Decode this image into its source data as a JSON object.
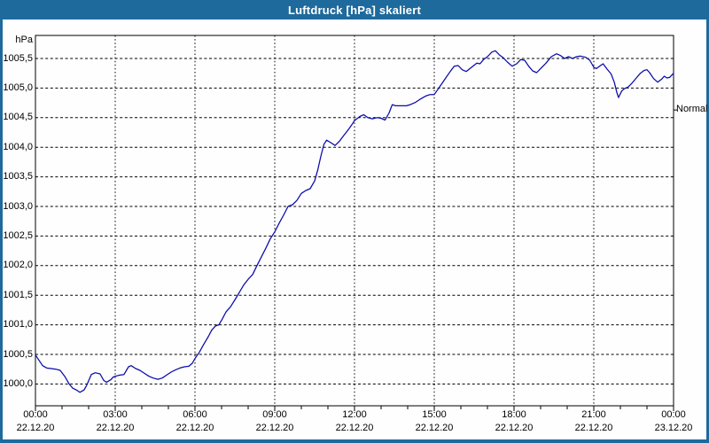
{
  "window": {
    "title": "Luftdruck [hPa] skaliert"
  },
  "colors": {
    "titlebar": "#1e6a9c",
    "window_border": "#2a6d9e",
    "chart_background": "#fdfefd",
    "plot_border": "#000000",
    "gridline": "#000000",
    "tick_text": "#000000",
    "line": "#0a0aab"
  },
  "chart_data": {
    "type": "line",
    "title": "Luftdruck [hPa] skaliert",
    "ylabel": "hPa",
    "xlabel": "",
    "x_unit": "hours since 22.12.20 00:00",
    "xlim": [
      0,
      24
    ],
    "ylim": [
      999.6,
      1005.9
    ],
    "grid": "dashed horizontal every 0.5 hPa, dashed vertical every 3 h",
    "legend_position": "none",
    "y_ticks": [
      {
        "value": 1005.5,
        "label": "1005,5"
      },
      {
        "value": 1005.0,
        "label": "1005,0"
      },
      {
        "value": 1004.5,
        "label": "1004,5"
      },
      {
        "value": 1004.0,
        "label": "1004,0"
      },
      {
        "value": 1003.5,
        "label": "1003,5"
      },
      {
        "value": 1003.0,
        "label": "1003,0"
      },
      {
        "value": 1002.5,
        "label": "1002,5"
      },
      {
        "value": 1002.0,
        "label": "1002,0"
      },
      {
        "value": 1001.5,
        "label": "1001,5"
      },
      {
        "value": 1001.0,
        "label": "1001,0"
      },
      {
        "value": 1000.5,
        "label": "1000,5"
      },
      {
        "value": 1000.0,
        "label": "1000,0"
      }
    ],
    "x_ticks": [
      {
        "hour": 0,
        "time": "00:00",
        "date": "22.12.20"
      },
      {
        "hour": 3,
        "time": "03:00",
        "date": "22.12.20"
      },
      {
        "hour": 6,
        "time": "06:00",
        "date": "22.12.20"
      },
      {
        "hour": 9,
        "time": "09:00",
        "date": "22.12.20"
      },
      {
        "hour": 12,
        "time": "12:00",
        "date": "22.12.20"
      },
      {
        "hour": 15,
        "time": "15:00",
        "date": "22.12.20"
      },
      {
        "hour": 18,
        "time": "18:00",
        "date": "22.12.20"
      },
      {
        "hour": 21,
        "time": "21:00",
        "date": "22.12.20"
      },
      {
        "hour": 24,
        "time": "00:00",
        "date": "23.12.20"
      }
    ],
    "minor_x_tick_every_hours": 1,
    "annotation": {
      "label": "Normal",
      "value": 1004.63,
      "side": "right"
    },
    "series": [
      {
        "name": "Luftdruck [hPa] skaliert",
        "color": "#0a0aab",
        "points": [
          [
            0.0,
            1000.49
          ],
          [
            0.27,
            1000.31
          ],
          [
            0.43,
            1000.27
          ],
          [
            0.6,
            1000.26
          ],
          [
            0.77,
            1000.25
          ],
          [
            0.93,
            1000.23
          ],
          [
            1.1,
            1000.13
          ],
          [
            1.27,
            1000.0
          ],
          [
            1.4,
            999.93
          ],
          [
            1.57,
            999.89
          ],
          [
            1.67,
            999.86
          ],
          [
            1.83,
            999.9
          ],
          [
            1.93,
            999.98
          ],
          [
            2.1,
            1000.16
          ],
          [
            2.25,
            1000.19
          ],
          [
            2.43,
            1000.17
          ],
          [
            2.57,
            1000.06
          ],
          [
            2.67,
            1000.03
          ],
          [
            2.83,
            1000.07
          ],
          [
            2.93,
            1000.12
          ],
          [
            3.0,
            1000.13
          ],
          [
            3.17,
            1000.15
          ],
          [
            3.33,
            1000.16
          ],
          [
            3.5,
            1000.29
          ],
          [
            3.6,
            1000.31
          ],
          [
            3.77,
            1000.26
          ],
          [
            3.93,
            1000.23
          ],
          [
            4.1,
            1000.18
          ],
          [
            4.27,
            1000.13
          ],
          [
            4.43,
            1000.1
          ],
          [
            4.6,
            1000.08
          ],
          [
            4.77,
            1000.1
          ],
          [
            4.93,
            1000.15
          ],
          [
            5.1,
            1000.2
          ],
          [
            5.27,
            1000.24
          ],
          [
            5.43,
            1000.27
          ],
          [
            5.6,
            1000.29
          ],
          [
            5.77,
            1000.3
          ],
          [
            5.9,
            1000.35
          ],
          [
            6.0,
            1000.43
          ],
          [
            6.17,
            1000.54
          ],
          [
            6.33,
            1000.67
          ],
          [
            6.5,
            1000.8
          ],
          [
            6.63,
            1000.91
          ],
          [
            6.77,
            1000.98
          ],
          [
            6.9,
            1001.0
          ],
          [
            7.03,
            1001.1
          ],
          [
            7.17,
            1001.22
          ],
          [
            7.33,
            1001.3
          ],
          [
            7.5,
            1001.42
          ],
          [
            7.67,
            1001.55
          ],
          [
            7.83,
            1001.67
          ],
          [
            8.0,
            1001.77
          ],
          [
            8.17,
            1001.85
          ],
          [
            8.33,
            1002.0
          ],
          [
            8.5,
            1002.15
          ],
          [
            8.67,
            1002.3
          ],
          [
            8.83,
            1002.45
          ],
          [
            9.0,
            1002.57
          ],
          [
            9.17,
            1002.72
          ],
          [
            9.33,
            1002.85
          ],
          [
            9.5,
            1003.0
          ],
          [
            9.67,
            1003.03
          ],
          [
            9.83,
            1003.1
          ],
          [
            10.0,
            1003.22
          ],
          [
            10.17,
            1003.27
          ],
          [
            10.33,
            1003.3
          ],
          [
            10.5,
            1003.43
          ],
          [
            10.62,
            1003.62
          ],
          [
            10.73,
            1003.84
          ],
          [
            10.85,
            1004.05
          ],
          [
            10.95,
            1004.12
          ],
          [
            11.1,
            1004.08
          ],
          [
            11.27,
            1004.03
          ],
          [
            11.43,
            1004.1
          ],
          [
            11.6,
            1004.2
          ],
          [
            11.77,
            1004.3
          ],
          [
            11.9,
            1004.38
          ],
          [
            12.0,
            1004.45
          ],
          [
            12.2,
            1004.52
          ],
          [
            12.35,
            1004.55
          ],
          [
            12.5,
            1004.5
          ],
          [
            12.67,
            1004.48
          ],
          [
            12.85,
            1004.5
          ],
          [
            13.0,
            1004.49
          ],
          [
            13.15,
            1004.46
          ],
          [
            13.3,
            1004.58
          ],
          [
            13.42,
            1004.72
          ],
          [
            13.55,
            1004.7
          ],
          [
            13.75,
            1004.7
          ],
          [
            13.95,
            1004.7
          ],
          [
            14.1,
            1004.72
          ],
          [
            14.3,
            1004.76
          ],
          [
            14.5,
            1004.82
          ],
          [
            14.7,
            1004.87
          ],
          [
            14.85,
            1004.89
          ],
          [
            15.0,
            1004.89
          ],
          [
            15.2,
            1005.02
          ],
          [
            15.4,
            1005.15
          ],
          [
            15.6,
            1005.28
          ],
          [
            15.75,
            1005.37
          ],
          [
            15.9,
            1005.38
          ],
          [
            16.05,
            1005.31
          ],
          [
            16.2,
            1005.28
          ],
          [
            16.4,
            1005.35
          ],
          [
            16.6,
            1005.42
          ],
          [
            16.72,
            1005.41
          ],
          [
            16.85,
            1005.48
          ],
          [
            17.0,
            1005.53
          ],
          [
            17.17,
            1005.61
          ],
          [
            17.3,
            1005.63
          ],
          [
            17.45,
            1005.56
          ],
          [
            17.6,
            1005.51
          ],
          [
            17.75,
            1005.44
          ],
          [
            17.93,
            1005.37
          ],
          [
            18.1,
            1005.41
          ],
          [
            18.25,
            1005.48
          ],
          [
            18.4,
            1005.47
          ],
          [
            18.55,
            1005.37
          ],
          [
            18.7,
            1005.29
          ],
          [
            18.85,
            1005.26
          ],
          [
            19.0,
            1005.33
          ],
          [
            19.2,
            1005.42
          ],
          [
            19.4,
            1005.53
          ],
          [
            19.6,
            1005.58
          ],
          [
            19.75,
            1005.55
          ],
          [
            19.9,
            1005.5
          ],
          [
            20.05,
            1005.53
          ],
          [
            20.2,
            1005.5
          ],
          [
            20.35,
            1005.53
          ],
          [
            20.5,
            1005.54
          ],
          [
            20.7,
            1005.52
          ],
          [
            20.85,
            1005.47
          ],
          [
            21.0,
            1005.35
          ],
          [
            21.1,
            1005.33
          ],
          [
            21.25,
            1005.38
          ],
          [
            21.35,
            1005.41
          ],
          [
            21.5,
            1005.32
          ],
          [
            21.65,
            1005.24
          ],
          [
            21.77,
            1005.1
          ],
          [
            21.87,
            1004.92
          ],
          [
            21.93,
            1004.84
          ],
          [
            22.05,
            1004.95
          ],
          [
            22.15,
            1004.99
          ],
          [
            22.3,
            1005.02
          ],
          [
            22.45,
            1005.09
          ],
          [
            22.6,
            1005.17
          ],
          [
            22.75,
            1005.25
          ],
          [
            22.9,
            1005.3
          ],
          [
            23.0,
            1005.31
          ],
          [
            23.1,
            1005.26
          ],
          [
            23.25,
            1005.16
          ],
          [
            23.4,
            1005.1
          ],
          [
            23.55,
            1005.15
          ],
          [
            23.65,
            1005.2
          ],
          [
            23.75,
            1005.17
          ],
          [
            23.85,
            1005.18
          ],
          [
            24.0,
            1005.25
          ]
        ]
      }
    ]
  }
}
